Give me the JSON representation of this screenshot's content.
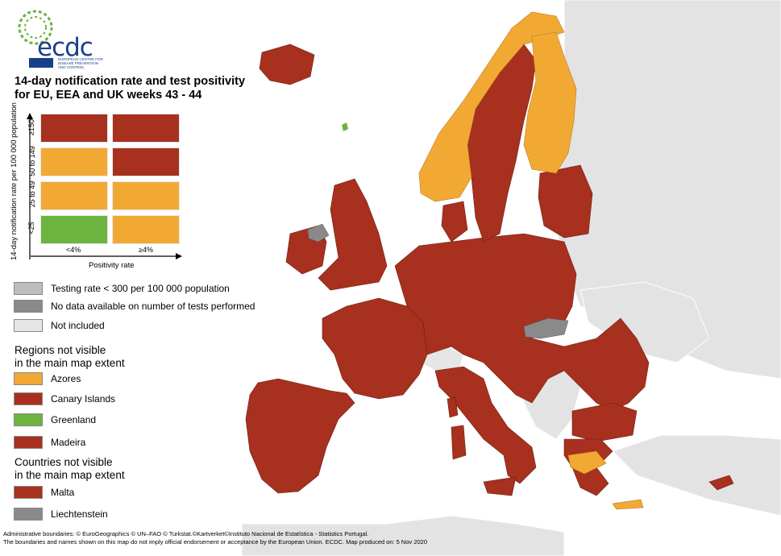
{
  "header": {
    "logo_text": "ecdc",
    "logo_subtitle": "EUROPEAN CENTRE FOR DISEASE PREVENTION AND CONTROL",
    "title_line1": "14-day notification rate and test positivity",
    "title_line2": "for EU, EEA and UK weeks 43 - 44"
  },
  "matrix": {
    "y_axis_label": "14-day notification rate per 100 000 population",
    "x_axis_label": "Positivity rate",
    "rows": [
      "≥150",
      "50 to 149",
      "25 to 49",
      "<25"
    ],
    "cols": [
      "<4%",
      "≥4%"
    ],
    "cell_colors": [
      [
        "#a8301e",
        "#a8301e"
      ],
      [
        "#f2a934",
        "#a8301e"
      ],
      [
        "#f2a934",
        "#f2a934"
      ],
      [
        "#6db33f",
        "#f2a934"
      ]
    ]
  },
  "legend_status": [
    {
      "label": "Testing rate < 300 per 100 000 population",
      "color": "#bdbdbd"
    },
    {
      "label": "No data available on number of tests performed",
      "color": "#8a8a8a"
    },
    {
      "label": "Not included",
      "color": "#e6e6e6"
    }
  ],
  "regions_heading": [
    "Regions not visible",
    "in the main map extent"
  ],
  "regions": [
    {
      "label": "Azores",
      "color": "#f2a934"
    },
    {
      "label": "Canary Islands",
      "color": "#a8301e"
    },
    {
      "label": "Greenland",
      "color": "#6db33f"
    },
    {
      "label": "Madeira",
      "color": "#a8301e"
    }
  ],
  "countries_heading": [
    "Countries not visible",
    "in the main map extent"
  ],
  "countries": [
    {
      "label": "Malta",
      "color": "#a8301e"
    },
    {
      "label": "Liechtenstein",
      "color": "#8a8a8a"
    }
  ],
  "footer": {
    "line1": "Administrative boundaries: © EuroGeographics © UN–FAO © Turkstat.©Kartverket©Instituto Nacional de Estatística - Statistics Portugal.",
    "line2": "The boundaries and names shown on this map do not imply official endorsement or acceptance by the European Union. ECDC. Map produced on: 5 Nov 2020"
  },
  "map_colors": {
    "red": "#a8301e",
    "orange": "#f2a934",
    "green": "#6db33f",
    "grey": "#8a8a8a",
    "not_included": "#e6e6e6",
    "background_land": "#e0e0e0"
  }
}
